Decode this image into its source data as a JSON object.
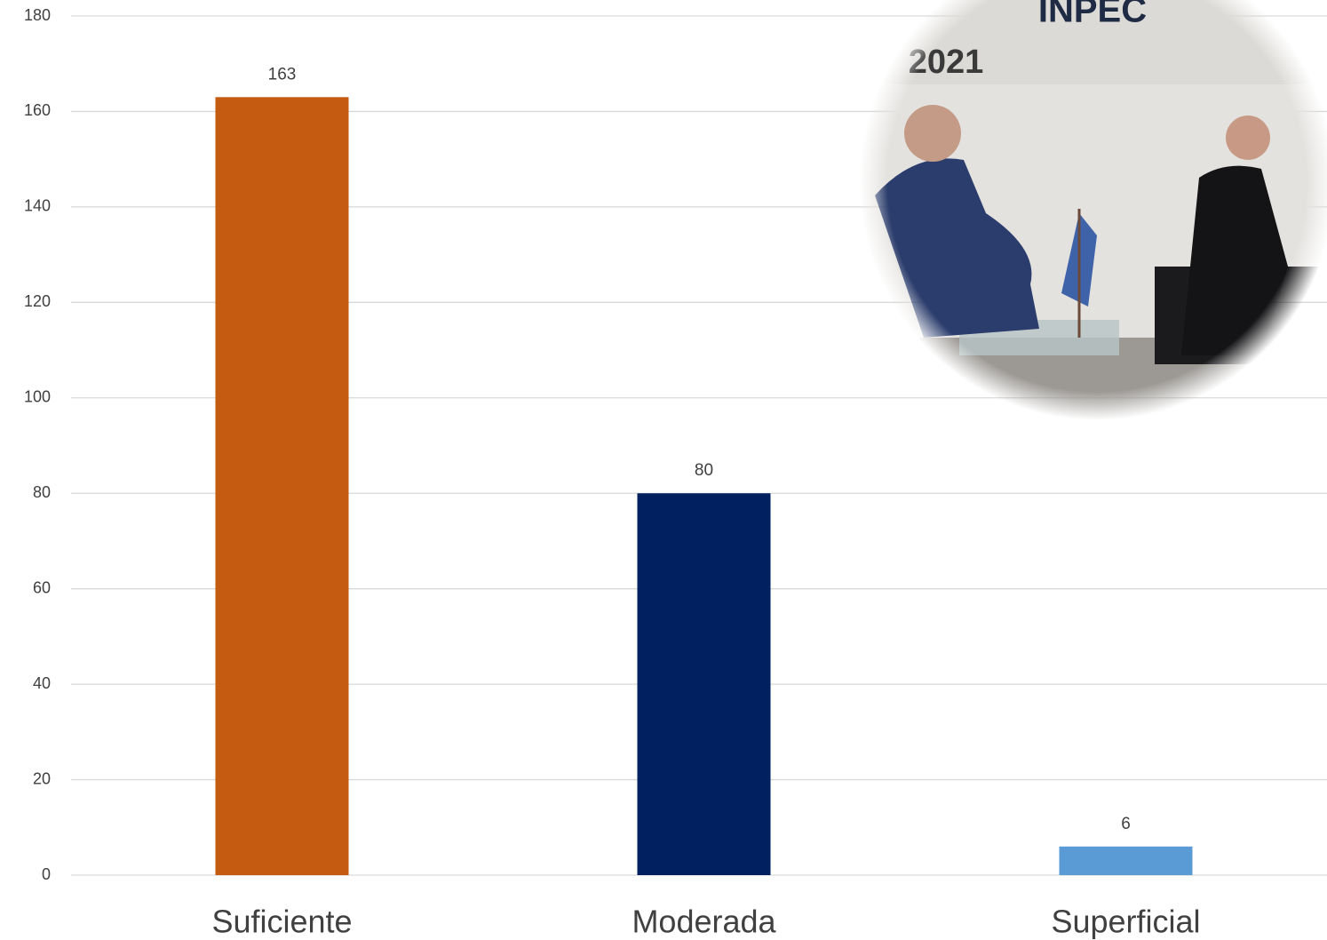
{
  "chart_data": {
    "type": "bar",
    "categories": [
      "Suficiente",
      "Moderada",
      "Superficial"
    ],
    "values": [
      163,
      80,
      6
    ],
    "colors": [
      "#c55a11",
      "#002060",
      "#5b9bd5"
    ],
    "ylim": [
      0,
      180
    ],
    "yticks": [
      0,
      20,
      40,
      60,
      80,
      100,
      120,
      140,
      160,
      180
    ],
    "grid": true,
    "image_texts": [
      "INPEC",
      "2021"
    ]
  }
}
